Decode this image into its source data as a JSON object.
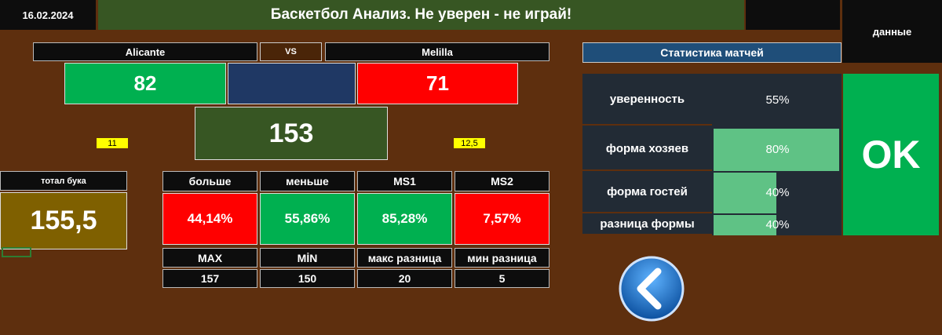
{
  "header": {
    "date": "16.02.2024",
    "title": "Баскетбол Анализ. Не уверен - не играй!",
    "data_button": "данные"
  },
  "match": {
    "home": "Alicante",
    "vs": "VS",
    "away": "Melilla",
    "home_score": "82",
    "away_score": "71",
    "total": "153",
    "home_note": "11",
    "away_note": "12,5"
  },
  "bookmaker": {
    "label": "тотал бука",
    "value": "155,5"
  },
  "table": {
    "header": [
      "больше",
      "меньше",
      "MS1",
      "MS2"
    ],
    "values": [
      "44,14%",
      "55,86%",
      "85,28%",
      "7,57%"
    ],
    "header2": [
      "MAX",
      "MİN",
      "макс разница",
      "мин разница"
    ],
    "values2": [
      "157",
      "150",
      "20",
      "5"
    ]
  },
  "stats": {
    "title": "Статистика матчей",
    "rows": [
      {
        "label": "уверенность",
        "value": 55,
        "value_label": "55%",
        "bar": false
      },
      {
        "label": "форма хозяев",
        "value": 80,
        "value_label": "80%",
        "bar": true
      },
      {
        "label": "форма гостей",
        "value": 40,
        "value_label": "40%",
        "bar": true
      },
      {
        "label": "разница формы",
        "value": 40,
        "value_label": "40%",
        "bar": true
      }
    ],
    "verdict": "OK"
  }
}
